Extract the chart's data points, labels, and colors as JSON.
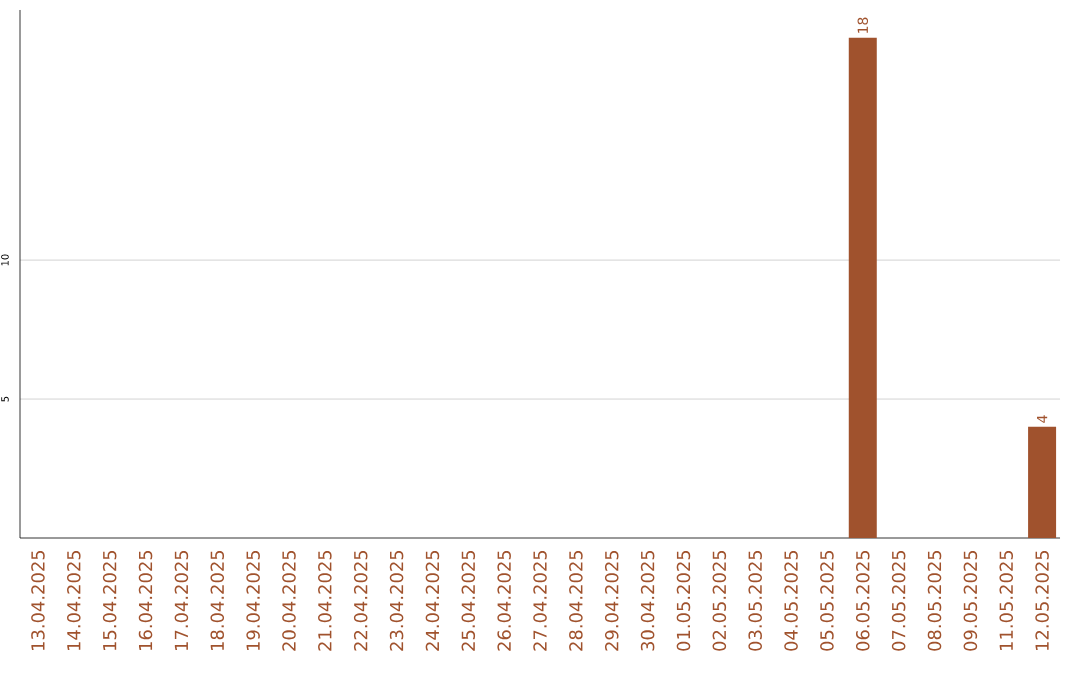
{
  "chart_data": {
    "type": "bar",
    "categories": [
      "13.04.2025",
      "14.04.2025",
      "15.04.2025",
      "16.04.2025",
      "17.04.2025",
      "18.04.2025",
      "19.04.2025",
      "20.04.2025",
      "21.04.2025",
      "22.04.2025",
      "23.04.2025",
      "24.04.2025",
      "25.04.2025",
      "26.04.2025",
      "27.04.2025",
      "28.04.2025",
      "29.04.2025",
      "30.04.2025",
      "01.05.2025",
      "02.05.2025",
      "03.05.2025",
      "04.05.2025",
      "05.05.2025",
      "06.05.2025",
      "07.05.2025",
      "08.05.2025",
      "09.05.2025",
      "11.05.2025",
      "12.05.2025"
    ],
    "values": [
      0,
      0,
      0,
      0,
      0,
      0,
      0,
      0,
      0,
      0,
      0,
      0,
      0,
      0,
      0,
      0,
      0,
      0,
      0,
      0,
      0,
      0,
      0,
      18,
      0,
      0,
      0,
      0,
      4
    ],
    "value_labels": [
      null,
      null,
      null,
      null,
      null,
      null,
      null,
      null,
      null,
      null,
      null,
      null,
      null,
      null,
      null,
      null,
      null,
      null,
      null,
      null,
      null,
      null,
      null,
      "18",
      null,
      null,
      null,
      null,
      "4"
    ],
    "color": "#a0522d",
    "ylim": [
      0,
      19
    ],
    "yticks": [
      5,
      10
    ],
    "grid": "y"
  }
}
